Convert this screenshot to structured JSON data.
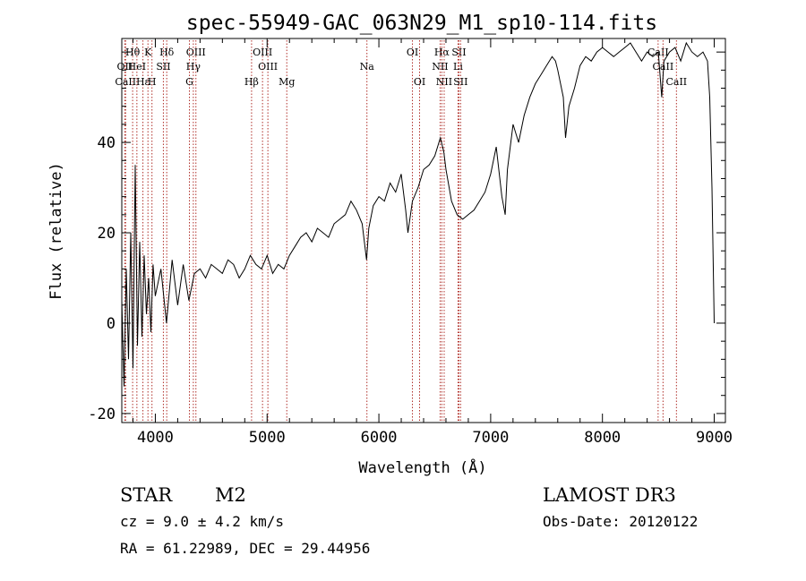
{
  "chart_data": {
    "type": "line",
    "title": "spec-55949-GAC_063N29_M1_sp10-114.fits",
    "xlabel": "Wavelength (Å)",
    "ylabel": "Flux (relative)",
    "xlim": [
      3700,
      9100
    ],
    "ylim": [
      -22,
      63
    ],
    "x_ticks": [
      4000,
      5000,
      6000,
      7000,
      8000,
      9000
    ],
    "y_ticks": [
      -20,
      0,
      20,
      40
    ],
    "grid": false,
    "series": [
      {
        "name": "flux",
        "x": [
          3700,
          3720,
          3740,
          3760,
          3780,
          3800,
          3820,
          3840,
          3860,
          3880,
          3900,
          3920,
          3940,
          3960,
          3980,
          4000,
          4050,
          4100,
          4150,
          4200,
          4250,
          4300,
          4350,
          4400,
          4450,
          4500,
          4550,
          4600,
          4650,
          4700,
          4750,
          4800,
          4850,
          4900,
          4950,
          5000,
          5050,
          5100,
          5150,
          5200,
          5250,
          5300,
          5350,
          5400,
          5450,
          5500,
          5550,
          5600,
          5650,
          5700,
          5750,
          5800,
          5850,
          5890,
          5910,
          5950,
          6000,
          6050,
          6100,
          6150,
          6200,
          6240,
          6260,
          6300,
          6350,
          6400,
          6450,
          6500,
          6550,
          6580,
          6600,
          6650,
          6700,
          6750,
          6800,
          6850,
          6900,
          6950,
          7000,
          7050,
          7100,
          7130,
          7150,
          7200,
          7250,
          7300,
          7350,
          7400,
          7450,
          7500,
          7550,
          7580,
          7600,
          7650,
          7670,
          7700,
          7750,
          7800,
          7850,
          7900,
          7950,
          8000,
          8050,
          8100,
          8150,
          8200,
          8250,
          8300,
          8350,
          8400,
          8450,
          8500,
          8530,
          8550,
          8600,
          8650,
          8700,
          8750,
          8800,
          8850,
          8900,
          8940,
          8960,
          8980,
          9000
        ],
        "values": [
          5,
          -14,
          12,
          -8,
          20,
          -10,
          35,
          -5,
          18,
          -3,
          15,
          2,
          10,
          -2,
          13,
          6,
          12,
          0,
          14,
          4,
          13,
          5,
          11,
          12,
          10,
          13,
          12,
          11,
          14,
          13,
          10,
          12,
          15,
          13,
          12,
          15,
          11,
          13,
          12,
          15,
          17,
          19,
          20,
          18,
          21,
          20,
          19,
          22,
          23,
          24,
          27,
          25,
          22,
          14,
          21,
          26,
          28,
          27,
          31,
          29,
          33,
          25,
          20,
          27,
          30,
          34,
          35,
          37,
          41,
          38,
          34,
          27,
          24,
          23,
          24,
          25,
          27,
          29,
          33,
          39,
          28,
          24,
          34,
          44,
          40,
          46,
          50,
          53,
          55,
          57,
          59,
          58,
          56,
          50,
          41,
          48,
          52,
          57,
          59,
          58,
          60,
          61,
          60,
          59,
          60,
          61,
          62,
          60,
          58,
          60,
          59,
          60,
          50,
          58,
          60,
          61,
          58,
          62,
          60,
          59,
          60,
          58,
          50,
          30,
          0
        ]
      }
    ],
    "spectral_lines": [
      {
        "label": "Hθ",
        "wavelength": 3797,
        "row": 1
      },
      {
        "label": "OII",
        "wavelength": 3727,
        "row": 2
      },
      {
        "label": "CaII",
        "wavelength": 3734,
        "row": 3
      },
      {
        "label": "Hε",
        "wavelength": 3889,
        "row": 3
      },
      {
        "label": "HeI",
        "wavelength": 3835,
        "row": 2
      },
      {
        "label": "K",
        "wavelength": 3934,
        "row": 1
      },
      {
        "label": "SII",
        "wavelength": 4072,
        "row": 2
      },
      {
        "label": "H",
        "wavelength": 3970,
        "row": 3
      },
      {
        "label": "Hδ",
        "wavelength": 4102,
        "row": 1
      },
      {
        "label": "OIII",
        "wavelength": 4363,
        "row": 1
      },
      {
        "label": "Hγ",
        "wavelength": 4340,
        "row": 2
      },
      {
        "label": "G",
        "wavelength": 4305,
        "row": 3
      },
      {
        "label": "OIII",
        "wavelength": 4959,
        "row": 1
      },
      {
        "label": "OIII",
        "wavelength": 5007,
        "row": 2
      },
      {
        "label": "Hβ",
        "wavelength": 4861,
        "row": 3
      },
      {
        "label": "Mg",
        "wavelength": 5176,
        "row": 3
      },
      {
        "label": "Na",
        "wavelength": 5893,
        "row": 2
      },
      {
        "label": "OI",
        "wavelength": 6300,
        "row": 1
      },
      {
        "label": "OI",
        "wavelength": 6364,
        "row": 3
      },
      {
        "label": "Hα",
        "wavelength": 6563,
        "row": 1
      },
      {
        "label": "SII",
        "wavelength": 6716,
        "row": 1
      },
      {
        "label": "NII",
        "wavelength": 6548,
        "row": 2
      },
      {
        "label": "Li",
        "wavelength": 6708,
        "row": 2
      },
      {
        "label": "NII",
        "wavelength": 6584,
        "row": 3
      },
      {
        "label": "SII",
        "wavelength": 6731,
        "row": 3
      },
      {
        "label": "CaII",
        "wavelength": 8498,
        "row": 1
      },
      {
        "label": "CaII",
        "wavelength": 8542,
        "row": 2
      },
      {
        "label": "CaII",
        "wavelength": 8662,
        "row": 3
      }
    ],
    "line_color": "#b0302a"
  },
  "info": {
    "class": "STAR",
    "subclass": "M2",
    "survey": "LAMOST DR3",
    "cz": "cz = 9.0 ± 4.2 km/s",
    "obs_date": "Obs-Date: 20120122",
    "coords": "RA =  61.22989, DEC =  29.44956"
  }
}
